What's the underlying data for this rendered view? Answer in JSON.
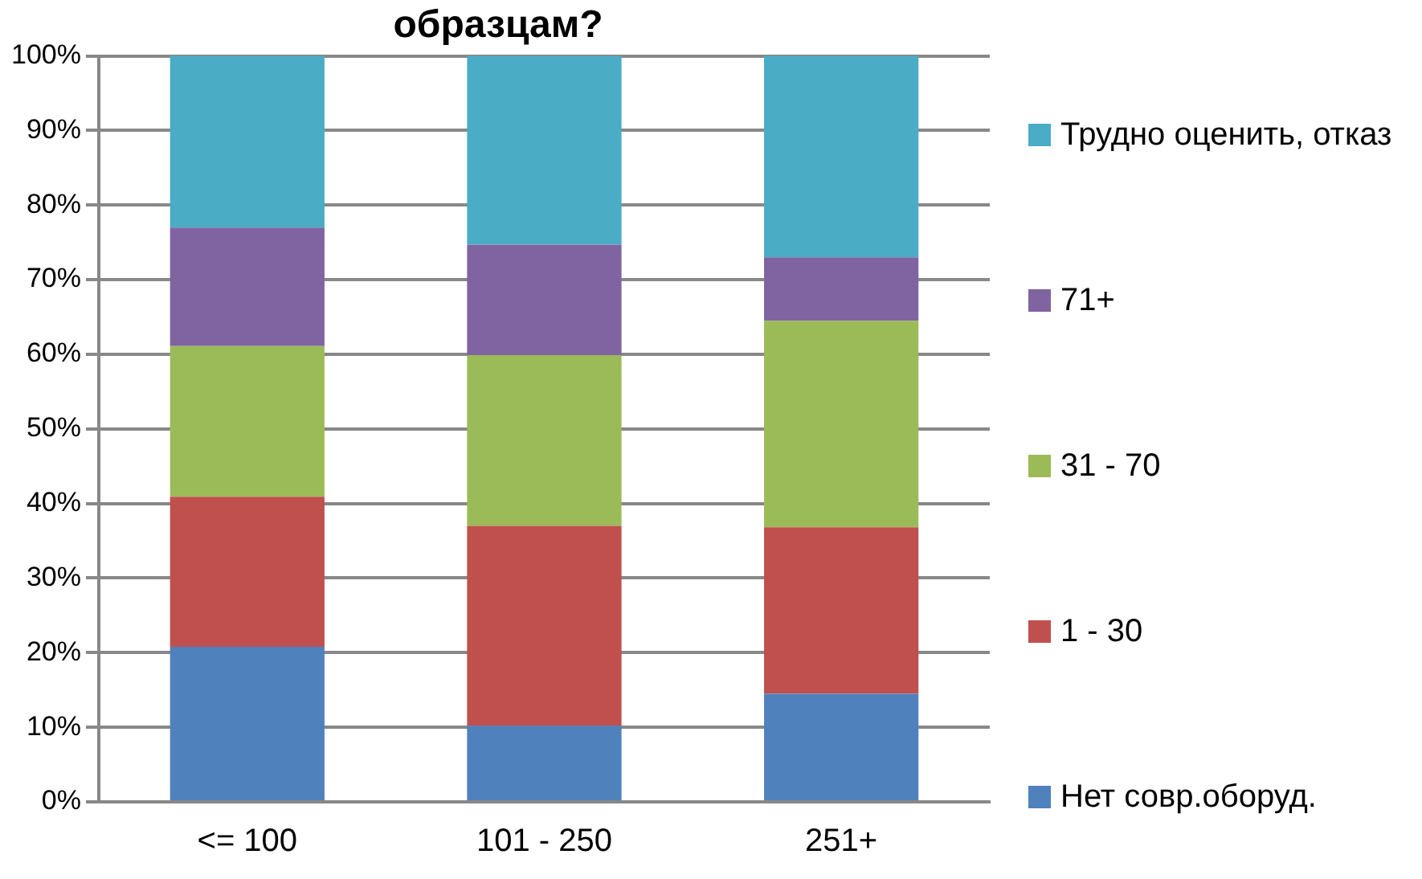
{
  "chart_data": {
    "type": "bar",
    "title": "образцам?",
    "stacked": true,
    "categories": [
      "<= 100",
      "101 - 250",
      "251+"
    ],
    "series": [
      {
        "name": "Нет совр.оборуд.",
        "color": "#4f81bd",
        "values": [
          20.8,
          10.2,
          14.5
        ]
      },
      {
        "name": "1 - 30",
        "color": "#c0504d",
        "values": [
          20.1,
          26.8,
          22.3
        ]
      },
      {
        "name": "31 - 70",
        "color": "#9bbb59",
        "values": [
          20.2,
          22.9,
          27.7
        ]
      },
      {
        "name": "71+",
        "color": "#8064a2",
        "values": [
          15.9,
          14.8,
          8.5
        ]
      },
      {
        "name": "Трудно оценить, отказ",
        "color": "#4bacc6",
        "values": [
          23.0,
          25.3,
          27.0
        ]
      }
    ],
    "ylim": [
      0,
      100
    ],
    "yticks": [
      {
        "value": 0,
        "label": "0%"
      },
      {
        "value": 10,
        "label": "10%"
      },
      {
        "value": 20,
        "label": "20%"
      },
      {
        "value": 30,
        "label": "30%"
      },
      {
        "value": 40,
        "label": "40%"
      },
      {
        "value": 50,
        "label": "50%"
      },
      {
        "value": 60,
        "label": "60%"
      },
      {
        "value": 70,
        "label": "70%"
      },
      {
        "value": 80,
        "label": "80%"
      },
      {
        "value": 90,
        "label": "90%"
      },
      {
        "value": 100,
        "label": "100%"
      }
    ],
    "grid": "y",
    "legend": "right"
  }
}
